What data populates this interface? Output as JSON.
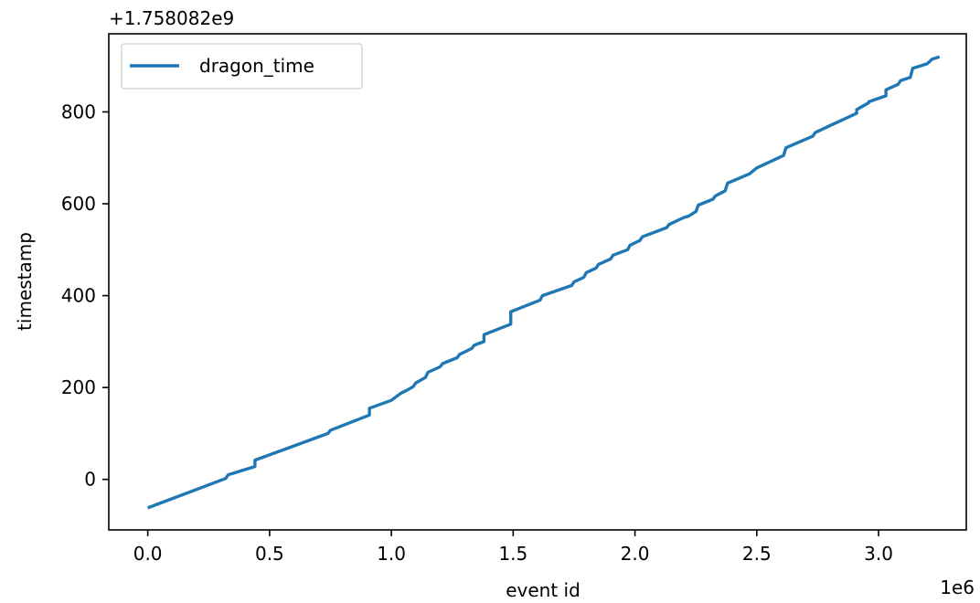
{
  "chart_data": {
    "type": "line",
    "title": "",
    "xlabel": "event id",
    "ylabel": "timestamp",
    "x_offset_label": "1e6",
    "y_offset_label": "+1.758082e9",
    "xlim": [
      -0.16,
      3.36
    ],
    "ylim": [
      -110,
      970
    ],
    "x_ticks": [
      0.0,
      0.5,
      1.0,
      1.5,
      2.0,
      2.5,
      3.0
    ],
    "x_tick_labels": [
      "0.0",
      "0.5",
      "1.0",
      "1.5",
      "2.0",
      "2.5",
      "3.0"
    ],
    "y_ticks": [
      0,
      200,
      400,
      600,
      800
    ],
    "y_tick_labels": [
      "0",
      "200",
      "400",
      "600",
      "800"
    ],
    "grid": false,
    "legend": {
      "position": "top-left",
      "entries": [
        "dragon_time"
      ]
    },
    "series": [
      {
        "name": "dragon_time",
        "color": "#1f77b4",
        "x": [
          0.0,
          0.32,
          0.33,
          0.44,
          0.44,
          0.56,
          0.74,
          0.75,
          0.91,
          0.91,
          1.0,
          1.02,
          1.04,
          1.06,
          1.09,
          1.1,
          1.14,
          1.15,
          1.2,
          1.21,
          1.27,
          1.28,
          1.33,
          1.34,
          1.38,
          1.38,
          1.49,
          1.49,
          1.61,
          1.62,
          1.74,
          1.75,
          1.79,
          1.8,
          1.84,
          1.85,
          1.9,
          1.91,
          1.97,
          1.98,
          2.02,
          2.03,
          2.13,
          2.14,
          2.2,
          2.22,
          2.25,
          2.26,
          2.32,
          2.33,
          2.37,
          2.38,
          2.47,
          2.5,
          2.61,
          2.62,
          2.73,
          2.74,
          2.8,
          2.91,
          2.91,
          2.96,
          2.96,
          3.03,
          3.03,
          3.08,
          3.09,
          3.13,
          3.14,
          3.2,
          3.22,
          3.25
        ],
        "y": [
          -62,
          2,
          10,
          28,
          42,
          65,
          100,
          107,
          140,
          155,
          172,
          180,
          188,
          193,
          202,
          210,
          222,
          233,
          245,
          252,
          265,
          272,
          285,
          292,
          300,
          315,
          338,
          365,
          390,
          400,
          422,
          430,
          440,
          450,
          460,
          468,
          480,
          488,
          500,
          510,
          520,
          528,
          548,
          555,
          570,
          573,
          583,
          597,
          610,
          617,
          628,
          645,
          665,
          678,
          705,
          722,
          747,
          755,
          770,
          797,
          805,
          820,
          822,
          835,
          848,
          860,
          868,
          875,
          895,
          905,
          915,
          920
        ]
      }
    ]
  }
}
